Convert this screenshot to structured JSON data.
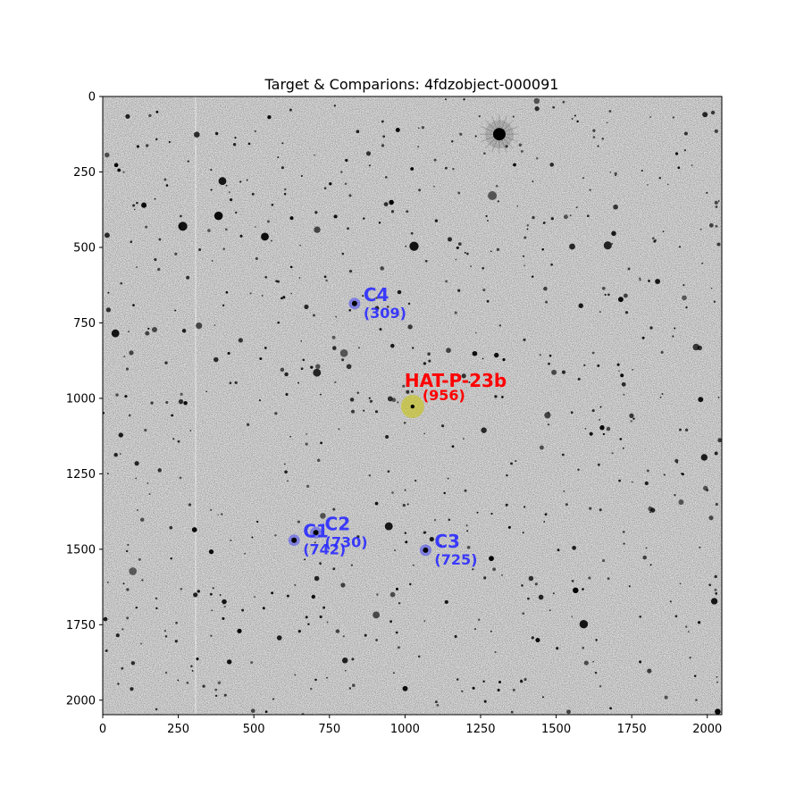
{
  "chart_data": {
    "type": "scatter",
    "title": "Target & Comparions: 4fdzobject-000091",
    "xlabel": "",
    "ylabel": "",
    "xlim": [
      0,
      2048
    ],
    "ylim": [
      2048,
      0
    ],
    "x_ticks": [
      0,
      250,
      500,
      750,
      1000,
      1250,
      1500,
      1750,
      2000
    ],
    "y_ticks": [
      0,
      250,
      500,
      750,
      1000,
      1250,
      1500,
      1750,
      2000
    ],
    "background": "inverted grayscale star field",
    "colors": {
      "target": "#ff0000",
      "target_marker": "#c8c400",
      "comparison": "#2a2aff"
    },
    "target": {
      "name": "HAT-P-23b",
      "value": "(956)",
      "x": 1025,
      "y": 1027
    },
    "comparisons": [
      {
        "name": "C1",
        "value": "(742)",
        "x": 633,
        "y": 1470
      },
      {
        "name": "C2",
        "value": "(730)",
        "x": 705,
        "y": 1445
      },
      {
        "name": "C3",
        "value": "(725)",
        "x": 1068,
        "y": 1503
      },
      {
        "name": "C4",
        "value": "(309)",
        "x": 833,
        "y": 686
      }
    ]
  }
}
